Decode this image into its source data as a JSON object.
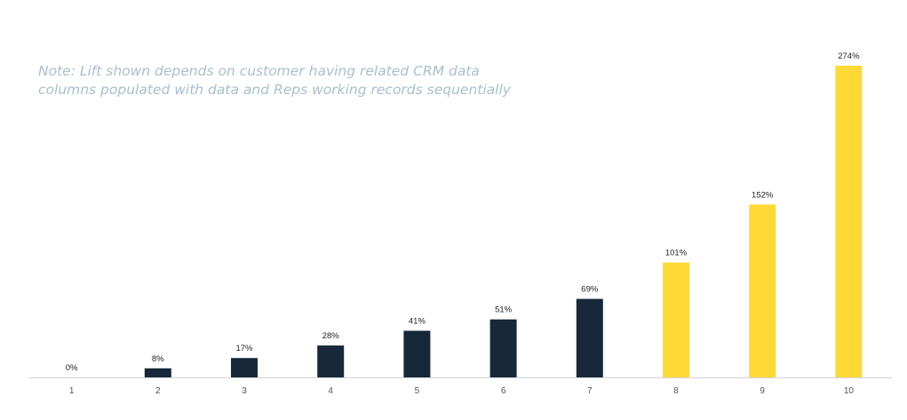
{
  "note": {
    "line1": "Note: Lift shown depends on customer having related CRM data",
    "line2": "columns populated with data and Reps working records sequentially"
  },
  "chart_data": {
    "type": "bar",
    "categories": [
      "1",
      "2",
      "3",
      "4",
      "5",
      "6",
      "7",
      "8",
      "9",
      "10"
    ],
    "values": [
      0,
      8,
      17,
      28,
      41,
      51,
      69,
      101,
      152,
      274
    ],
    "data_labels": [
      "0%",
      "8%",
      "17%",
      "28%",
      "41%",
      "51%",
      "69%",
      "101%",
      "152%",
      "274%"
    ],
    "bar_colors": [
      "#16283a",
      "#16283a",
      "#16283a",
      "#16283a",
      "#16283a",
      "#16283a",
      "#16283a",
      "#ffd935",
      "#ffd935",
      "#ffd935"
    ],
    "title": "",
    "xlabel": "",
    "ylabel": "",
    "ylim": [
      0,
      274
    ],
    "grid": false,
    "legend": "none"
  }
}
